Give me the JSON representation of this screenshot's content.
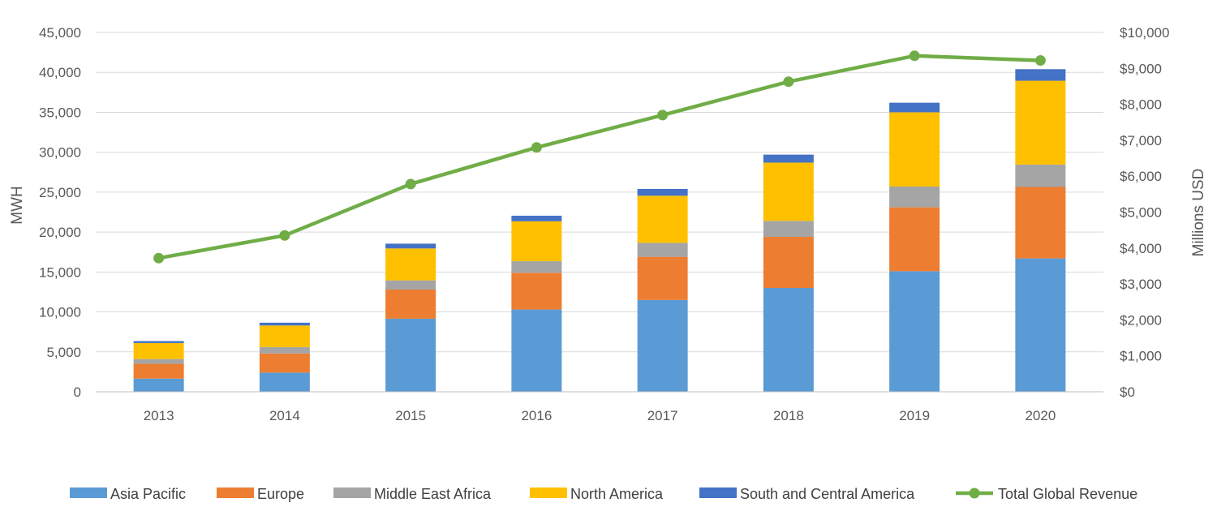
{
  "chart_data": {
    "type": "bar",
    "stacked": true,
    "categories": [
      "2013",
      "2014",
      "2015",
      "2016",
      "2017",
      "2018",
      "2019",
      "2020"
    ],
    "series": [
      {
        "name": "Asia Pacific",
        "color": "#5B9BD5",
        "values": [
          1650,
          2400,
          9150,
          10300,
          11500,
          13000,
          15100,
          16700
        ]
      },
      {
        "name": "Europe",
        "color": "#ED7D31",
        "values": [
          1850,
          2400,
          3650,
          4600,
          5400,
          6400,
          8000,
          8950
        ]
      },
      {
        "name": "Middle East Africa",
        "color": "#A5A5A5",
        "values": [
          600,
          800,
          1150,
          1450,
          1750,
          2000,
          2600,
          2800
        ]
      },
      {
        "name": "North America",
        "color": "#FFC000",
        "values": [
          2000,
          2700,
          4000,
          5000,
          5900,
          7300,
          9300,
          10500
        ]
      },
      {
        "name": "South and Central America",
        "color": "#4472C4",
        "values": [
          250,
          350,
          600,
          700,
          850,
          1000,
          1200,
          1450
        ]
      }
    ],
    "line_series": {
      "name": "Total Global Revenue",
      "color": "#70AD47",
      "axis": "right",
      "values": [
        3720,
        4350,
        5780,
        6800,
        7700,
        8630,
        9350,
        9220
      ]
    },
    "left_axis": {
      "label": "MWH",
      "ylim": [
        0,
        45000
      ],
      "ticks": [
        "0",
        "5,000",
        "10,000",
        "15,000",
        "20,000",
        "25,000",
        "30,000",
        "35,000",
        "40,000",
        "45,000"
      ]
    },
    "right_axis": {
      "label": "Millions USD",
      "ylim": [
        0,
        10000
      ],
      "ticks": [
        "$0",
        "$1,000",
        "$2,000",
        "$3,000",
        "$4,000",
        "$5,000",
        "$6,000",
        "$7,000",
        "$8,000",
        "$9,000",
        "$10,000"
      ]
    },
    "grid": true,
    "legend_position": "bottom"
  }
}
